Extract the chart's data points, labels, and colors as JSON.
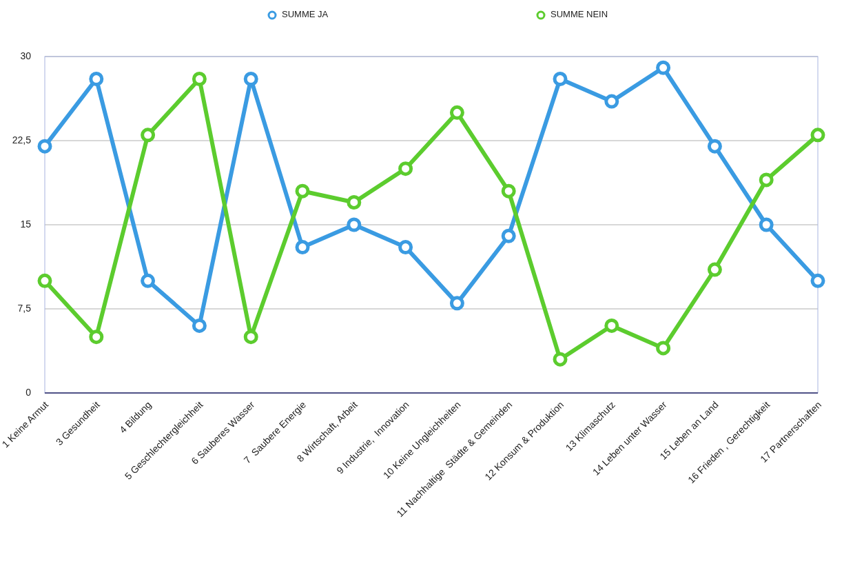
{
  "chart_data": {
    "type": "line",
    "categories": [
      "1 Keine Armut",
      "3 Gesundheit",
      "4 Bildung",
      "5 Geschlechtergleichheit",
      "6 Sauberes Wasser",
      "7  Saubere Energie",
      "8 Wirtschaft, Arbeit",
      "9 Industrie,  Innovation",
      "10 Keine Ungleichheiten",
      "11 Nachhaltige  Städte & Gemeinden",
      "12 Konsum & Produktion",
      "13 Klimaschutz",
      "14 Leben unter Wasser",
      "15 Leben an Land",
      "16 Frieden , Gerechtigkeit",
      "17 Partnerschaften"
    ],
    "series": [
      {
        "name": "SUMME JA",
        "color": "#3a9be2",
        "values": [
          22,
          28,
          10,
          6,
          28,
          13,
          15,
          13,
          8,
          14,
          28,
          26,
          29,
          22,
          15,
          10
        ]
      },
      {
        "name": "SUMME NEIN",
        "color": "#5ccc2e",
        "values": [
          10,
          5,
          23,
          28,
          5,
          18,
          17,
          20,
          25,
          18,
          3,
          6,
          4,
          11,
          19,
          23
        ]
      }
    ],
    "ylim": [
      0,
      30
    ],
    "yticks": [
      0,
      {
        "value": 7.5,
        "label": "7,5"
      },
      15,
      {
        "value": 22.5,
        "label": "22,5"
      },
      30
    ],
    "grid": "y",
    "legend": "top",
    "marker": "circle",
    "line_style": "solid"
  }
}
